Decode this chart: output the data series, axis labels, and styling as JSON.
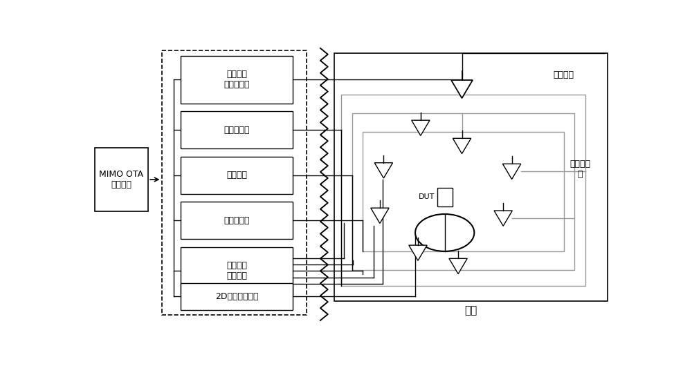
{
  "line_color": "#000000",
  "gray_color": "#999999",
  "mimo_label": "MIMO OTA\n测试平台",
  "boxes": [
    {
      "label": "无线通信\n综合测试仪",
      "two_line": true
    },
    {
      "label": "信道仿真器",
      "two_line": false
    },
    {
      "label": "功放单元",
      "two_line": false
    },
    {
      "label": "网络分析仪",
      "two_line": false
    },
    {
      "label": "射频信号\n处理单元",
      "two_line": true
    },
    {
      "label": "2D转台控制单元",
      "two_line": false
    }
  ],
  "anechoic_label": "暗室",
  "link_antenna_label": "链路天线",
  "multi_probe_label": "多探头系\n统",
  "dut_label": "DUT"
}
